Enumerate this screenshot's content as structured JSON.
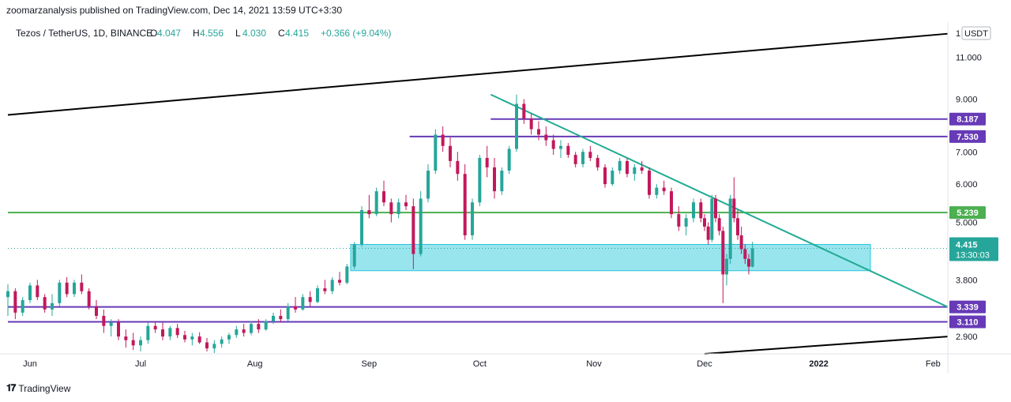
{
  "publisher_line": "zoomarzanalysis published on TradingView.com, Dec 14, 2021 13:59 UTC+3:30",
  "footer_brand": "TradingView",
  "chart_data": {
    "type": "candlestick",
    "legend": "Tezos / TetherUS, 1D, BINANCE",
    "ohlc_readout": {
      "O": "4.047",
      "H": "4.556",
      "L": "4.030",
      "C": "4.415",
      "change": "+0.366 (+9.04%)"
    },
    "currency": "USDT",
    "y_scale": "log",
    "ylim": [
      2.67,
      13.0
    ],
    "y_ticks": [
      "11.000",
      "9.000",
      "7.000",
      "6.000",
      "5.000",
      "3.800",
      "2.900"
    ],
    "y_tick_values": [
      11.0,
      9.0,
      7.0,
      6.0,
      5.0,
      3.8,
      2.9
    ],
    "top_tick_partial": "1",
    "x_labels": [
      "Jun",
      "Jul",
      "Aug",
      "Sep",
      "Oct",
      "Nov",
      "Dec",
      "2022",
      "Feb"
    ],
    "x_label_dates": [
      "2021-06-01",
      "2021-07-01",
      "2021-08-01",
      "2021-09-01",
      "2021-10-01",
      "2021-11-01",
      "2021-12-01",
      "2022-01-01",
      "2022-02-01"
    ],
    "x_range": [
      "2021-05-26",
      "2022-02-05"
    ],
    "last_price": {
      "value": 4.415,
      "label": "4.415",
      "countdown": "13:30:03",
      "color": "#26a69a"
    },
    "horizontal_levels": [
      {
        "value": 8.187,
        "label": "8.187",
        "color": "#673ab7",
        "from": "2021-10-04"
      },
      {
        "value": 7.53,
        "label": "7.530",
        "color": "#673ab7",
        "from": "2021-09-12"
      },
      {
        "value": 5.239,
        "label": "5.239",
        "color": "#4caf50",
        "from": "2021-05-26"
      },
      {
        "value": 3.339,
        "label": "3.339",
        "color": "#673ab7",
        "from": "2021-05-26"
      },
      {
        "value": 3.11,
        "label": "3.110",
        "color": "#673ab7",
        "from": "2021-05-26"
      }
    ],
    "zone": {
      "from": "2021-08-27",
      "to": "2022-01-15",
      "top": 4.5,
      "bottom": 3.97,
      "color": "#80deea"
    },
    "trendlines": [
      {
        "from": [
          "2021-05-26",
          8.35
        ],
        "to": [
          "2022-02-05",
          12.3
        ],
        "color": "#000000"
      },
      {
        "from": [
          "2021-12-01",
          2.67
        ],
        "to": [
          "2022-02-05",
          2.9
        ],
        "color": "#000000"
      },
      {
        "from": [
          "2021-10-04",
          9.2
        ],
        "to": [
          "2022-02-05",
          3.339
        ],
        "color": "#22ab94"
      }
    ],
    "up_color": "#26a69a",
    "down_color": "#c2185b",
    "series": [
      {
        "date": "2021-05-26",
        "o": 3.5,
        "h": 3.72,
        "l": 3.2,
        "c": 3.6
      },
      {
        "date": "2021-05-28",
        "o": 3.6,
        "h": 3.65,
        "l": 3.15,
        "c": 3.25
      },
      {
        "date": "2021-05-30",
        "o": 3.25,
        "h": 3.5,
        "l": 3.2,
        "c": 3.45
      },
      {
        "date": "2021-06-01",
        "o": 3.45,
        "h": 3.75,
        "l": 3.4,
        "c": 3.7
      },
      {
        "date": "2021-06-03",
        "o": 3.7,
        "h": 3.8,
        "l": 3.45,
        "c": 3.5
      },
      {
        "date": "2021-06-05",
        "o": 3.5,
        "h": 3.55,
        "l": 3.25,
        "c": 3.3
      },
      {
        "date": "2021-06-07",
        "o": 3.3,
        "h": 3.55,
        "l": 3.2,
        "c": 3.4
      },
      {
        "date": "2021-06-09",
        "o": 3.4,
        "h": 3.8,
        "l": 3.35,
        "c": 3.75
      },
      {
        "date": "2021-06-11",
        "o": 3.75,
        "h": 3.85,
        "l": 3.5,
        "c": 3.55
      },
      {
        "date": "2021-06-13",
        "o": 3.55,
        "h": 3.8,
        "l": 3.5,
        "c": 3.75
      },
      {
        "date": "2021-06-15",
        "o": 3.75,
        "h": 3.9,
        "l": 3.55,
        "c": 3.6
      },
      {
        "date": "2021-06-17",
        "o": 3.6,
        "h": 3.65,
        "l": 3.3,
        "c": 3.35
      },
      {
        "date": "2021-06-19",
        "o": 3.35,
        "h": 3.45,
        "l": 3.15,
        "c": 3.2
      },
      {
        "date": "2021-06-21",
        "o": 3.2,
        "h": 3.3,
        "l": 2.95,
        "c": 3.05
      },
      {
        "date": "2021-06-23",
        "o": 3.05,
        "h": 3.15,
        "l": 2.9,
        "c": 3.1
      },
      {
        "date": "2021-06-25",
        "o": 3.1,
        "h": 3.15,
        "l": 2.85,
        "c": 2.9
      },
      {
        "date": "2021-06-27",
        "o": 2.9,
        "h": 3.0,
        "l": 2.75,
        "c": 2.85
      },
      {
        "date": "2021-06-29",
        "o": 2.85,
        "h": 2.95,
        "l": 2.72,
        "c": 2.78
      },
      {
        "date": "2021-07-01",
        "o": 2.78,
        "h": 2.9,
        "l": 2.7,
        "c": 2.85
      },
      {
        "date": "2021-07-03",
        "o": 2.85,
        "h": 3.1,
        "l": 2.8,
        "c": 3.05
      },
      {
        "date": "2021-07-05",
        "o": 3.05,
        "h": 3.12,
        "l": 2.95,
        "c": 3.0
      },
      {
        "date": "2021-07-07",
        "o": 3.0,
        "h": 3.1,
        "l": 2.85,
        "c": 2.9
      },
      {
        "date": "2021-07-09",
        "o": 2.9,
        "h": 3.05,
        "l": 2.85,
        "c": 3.02
      },
      {
        "date": "2021-07-11",
        "o": 3.02,
        "h": 3.08,
        "l": 2.88,
        "c": 2.92
      },
      {
        "date": "2021-07-13",
        "o": 2.92,
        "h": 2.98,
        "l": 2.82,
        "c": 2.86
      },
      {
        "date": "2021-07-15",
        "o": 2.86,
        "h": 2.95,
        "l": 2.78,
        "c": 2.9
      },
      {
        "date": "2021-07-17",
        "o": 2.9,
        "h": 2.96,
        "l": 2.8,
        "c": 2.82
      },
      {
        "date": "2021-07-19",
        "o": 2.82,
        "h": 2.88,
        "l": 2.7,
        "c": 2.74
      },
      {
        "date": "2021-07-21",
        "o": 2.74,
        "h": 2.85,
        "l": 2.68,
        "c": 2.8
      },
      {
        "date": "2021-07-23",
        "o": 2.8,
        "h": 2.9,
        "l": 2.75,
        "c": 2.86
      },
      {
        "date": "2021-07-25",
        "o": 2.86,
        "h": 2.95,
        "l": 2.8,
        "c": 2.92
      },
      {
        "date": "2021-07-27",
        "o": 2.92,
        "h": 3.05,
        "l": 2.88,
        "c": 3.0
      },
      {
        "date": "2021-07-29",
        "o": 3.0,
        "h": 3.08,
        "l": 2.9,
        "c": 2.95
      },
      {
        "date": "2021-07-31",
        "o": 2.95,
        "h": 3.12,
        "l": 2.92,
        "c": 3.08
      },
      {
        "date": "2021-08-02",
        "o": 3.08,
        "h": 3.15,
        "l": 2.95,
        "c": 3.0
      },
      {
        "date": "2021-08-04",
        "o": 3.0,
        "h": 3.15,
        "l": 2.98,
        "c": 3.12
      },
      {
        "date": "2021-08-06",
        "o": 3.12,
        "h": 3.25,
        "l": 3.08,
        "c": 3.2
      },
      {
        "date": "2021-08-08",
        "o": 3.2,
        "h": 3.3,
        "l": 3.1,
        "c": 3.15
      },
      {
        "date": "2021-08-10",
        "o": 3.15,
        "h": 3.4,
        "l": 3.12,
        "c": 3.35
      },
      {
        "date": "2021-08-12",
        "o": 3.35,
        "h": 3.5,
        "l": 3.25,
        "c": 3.3
      },
      {
        "date": "2021-08-14",
        "o": 3.3,
        "h": 3.55,
        "l": 3.28,
        "c": 3.5
      },
      {
        "date": "2021-08-16",
        "o": 3.5,
        "h": 3.6,
        "l": 3.35,
        "c": 3.42
      },
      {
        "date": "2021-08-18",
        "o": 3.42,
        "h": 3.7,
        "l": 3.4,
        "c": 3.65
      },
      {
        "date": "2021-08-20",
        "o": 3.65,
        "h": 3.8,
        "l": 3.55,
        "c": 3.6
      },
      {
        "date": "2021-08-22",
        "o": 3.6,
        "h": 3.85,
        "l": 3.55,
        "c": 3.8
      },
      {
        "date": "2021-08-24",
        "o": 3.8,
        "h": 3.95,
        "l": 3.7,
        "c": 3.75
      },
      {
        "date": "2021-08-26",
        "o": 3.75,
        "h": 4.1,
        "l": 3.72,
        "c": 4.05
      },
      {
        "date": "2021-08-28",
        "o": 4.05,
        "h": 4.55,
        "l": 4.0,
        "c": 4.5
      },
      {
        "date": "2021-08-30",
        "o": 4.5,
        "h": 5.4,
        "l": 4.45,
        "c": 5.3
      },
      {
        "date": "2021-09-01",
        "o": 5.3,
        "h": 5.7,
        "l": 5.1,
        "c": 5.2
      },
      {
        "date": "2021-09-03",
        "o": 5.2,
        "h": 5.9,
        "l": 5.15,
        "c": 5.8
      },
      {
        "date": "2021-09-05",
        "o": 5.8,
        "h": 6.1,
        "l": 5.4,
        "c": 5.5
      },
      {
        "date": "2021-09-07",
        "o": 5.5,
        "h": 5.6,
        "l": 5.0,
        "c": 5.2
      },
      {
        "date": "2021-09-09",
        "o": 5.2,
        "h": 5.6,
        "l": 5.1,
        "c": 5.5
      },
      {
        "date": "2021-09-11",
        "o": 5.5,
        "h": 5.7,
        "l": 5.3,
        "c": 5.4
      },
      {
        "date": "2021-09-13",
        "o": 5.4,
        "h": 5.6,
        "l": 4.0,
        "c": 4.3
      },
      {
        "date": "2021-09-15",
        "o": 4.3,
        "h": 5.8,
        "l": 4.25,
        "c": 5.6
      },
      {
        "date": "2021-09-17",
        "o": 5.6,
        "h": 6.6,
        "l": 5.5,
        "c": 6.4
      },
      {
        "date": "2021-09-19",
        "o": 6.4,
        "h": 7.8,
        "l": 6.3,
        "c": 7.6
      },
      {
        "date": "2021-09-21",
        "o": 7.6,
        "h": 7.9,
        "l": 7.0,
        "c": 7.2
      },
      {
        "date": "2021-09-23",
        "o": 7.2,
        "h": 7.5,
        "l": 6.5,
        "c": 6.7
      },
      {
        "date": "2021-09-25",
        "o": 6.7,
        "h": 7.0,
        "l": 6.1,
        "c": 6.3
      },
      {
        "date": "2021-09-27",
        "o": 6.3,
        "h": 6.6,
        "l": 4.6,
        "c": 4.7
      },
      {
        "date": "2021-09-29",
        "o": 4.7,
        "h": 5.6,
        "l": 4.6,
        "c": 5.5
      },
      {
        "date": "2021-10-01",
        "o": 5.5,
        "h": 6.9,
        "l": 5.4,
        "c": 6.8
      },
      {
        "date": "2021-10-03",
        "o": 6.8,
        "h": 7.2,
        "l": 6.2,
        "c": 6.5
      },
      {
        "date": "2021-10-05",
        "o": 6.5,
        "h": 6.8,
        "l": 5.6,
        "c": 5.8
      },
      {
        "date": "2021-10-07",
        "o": 5.8,
        "h": 6.5,
        "l": 5.7,
        "c": 6.4
      },
      {
        "date": "2021-10-09",
        "o": 6.4,
        "h": 7.2,
        "l": 6.3,
        "c": 7.1
      },
      {
        "date": "2021-10-11",
        "o": 7.1,
        "h": 9.2,
        "l": 7.0,
        "c": 8.8
      },
      {
        "date": "2021-10-13",
        "o": 8.8,
        "h": 9.0,
        "l": 8.0,
        "c": 8.2
      },
      {
        "date": "2021-10-15",
        "o": 8.2,
        "h": 8.4,
        "l": 7.6,
        "c": 7.8
      },
      {
        "date": "2021-10-17",
        "o": 7.8,
        "h": 8.1,
        "l": 7.4,
        "c": 7.6
      },
      {
        "date": "2021-10-19",
        "o": 7.6,
        "h": 7.9,
        "l": 7.2,
        "c": 7.4
      },
      {
        "date": "2021-10-21",
        "o": 7.4,
        "h": 7.6,
        "l": 6.9,
        "c": 7.1
      },
      {
        "date": "2021-10-23",
        "o": 7.1,
        "h": 7.4,
        "l": 6.8,
        "c": 7.2
      },
      {
        "date": "2021-10-25",
        "o": 7.2,
        "h": 7.3,
        "l": 6.8,
        "c": 6.9
      },
      {
        "date": "2021-10-27",
        "o": 6.9,
        "h": 7.0,
        "l": 6.5,
        "c": 6.6
      },
      {
        "date": "2021-10-29",
        "o": 6.6,
        "h": 7.1,
        "l": 6.5,
        "c": 7.0
      },
      {
        "date": "2021-10-31",
        "o": 7.0,
        "h": 7.2,
        "l": 6.7,
        "c": 6.8
      },
      {
        "date": "2021-11-02",
        "o": 6.8,
        "h": 6.9,
        "l": 6.4,
        "c": 6.5
      },
      {
        "date": "2021-11-04",
        "o": 6.5,
        "h": 6.6,
        "l": 5.9,
        "c": 6.0
      },
      {
        "date": "2021-11-06",
        "o": 6.0,
        "h": 6.5,
        "l": 5.95,
        "c": 6.4
      },
      {
        "date": "2021-11-08",
        "o": 6.4,
        "h": 6.8,
        "l": 6.3,
        "c": 6.7
      },
      {
        "date": "2021-11-10",
        "o": 6.7,
        "h": 6.8,
        "l": 6.2,
        "c": 6.3
      },
      {
        "date": "2021-11-12",
        "o": 6.3,
        "h": 6.6,
        "l": 6.1,
        "c": 6.5
      },
      {
        "date": "2021-11-14",
        "o": 6.5,
        "h": 6.7,
        "l": 6.3,
        "c": 6.4
      },
      {
        "date": "2021-11-16",
        "o": 6.4,
        "h": 6.5,
        "l": 5.6,
        "c": 5.7
      },
      {
        "date": "2021-11-18",
        "o": 5.7,
        "h": 6.0,
        "l": 5.6,
        "c": 5.9
      },
      {
        "date": "2021-11-20",
        "o": 5.9,
        "h": 6.1,
        "l": 5.7,
        "c": 5.8
      },
      {
        "date": "2021-11-22",
        "o": 5.8,
        "h": 5.9,
        "l": 5.1,
        "c": 5.2
      },
      {
        "date": "2021-11-24",
        "o": 5.2,
        "h": 5.4,
        "l": 4.8,
        "c": 4.9
      },
      {
        "date": "2021-11-26",
        "o": 4.9,
        "h": 5.2,
        "l": 4.7,
        "c": 5.1
      },
      {
        "date": "2021-11-28",
        "o": 5.1,
        "h": 5.6,
        "l": 5.0,
        "c": 5.5
      },
      {
        "date": "2021-11-30",
        "o": 5.5,
        "h": 5.6,
        "l": 5.0,
        "c": 5.1
      },
      {
        "date": "2021-12-01",
        "o": 5.1,
        "h": 5.2,
        "l": 4.8,
        "c": 4.9
      },
      {
        "date": "2021-12-02",
        "o": 4.9,
        "h": 5.0,
        "l": 4.5,
        "c": 4.6
      },
      {
        "date": "2021-12-03",
        "o": 4.6,
        "h": 5.7,
        "l": 4.55,
        "c": 5.6
      },
      {
        "date": "2021-12-04",
        "o": 5.6,
        "h": 5.7,
        "l": 5.0,
        "c": 5.1
      },
      {
        "date": "2021-12-05",
        "o": 5.1,
        "h": 5.2,
        "l": 4.7,
        "c": 4.8
      },
      {
        "date": "2021-12-06",
        "o": 4.8,
        "h": 4.9,
        "l": 3.4,
        "c": 3.9
      },
      {
        "date": "2021-12-07",
        "o": 3.9,
        "h": 4.3,
        "l": 3.7,
        "c": 4.2
      },
      {
        "date": "2021-12-08",
        "o": 4.2,
        "h": 5.7,
        "l": 4.1,
        "c": 5.6
      },
      {
        "date": "2021-12-09",
        "o": 5.6,
        "h": 6.2,
        "l": 5.0,
        "c": 5.1
      },
      {
        "date": "2021-12-10",
        "o": 5.1,
        "h": 5.3,
        "l": 4.6,
        "c": 4.7
      },
      {
        "date": "2021-12-11",
        "o": 4.7,
        "h": 4.9,
        "l": 4.3,
        "c": 4.4
      },
      {
        "date": "2021-12-12",
        "o": 4.4,
        "h": 4.5,
        "l": 4.1,
        "c": 4.2
      },
      {
        "date": "2021-12-13",
        "o": 4.2,
        "h": 4.3,
        "l": 3.9,
        "c": 4.047
      },
      {
        "date": "2021-12-14",
        "o": 4.047,
        "h": 4.556,
        "l": 4.03,
        "c": 4.415
      }
    ]
  }
}
